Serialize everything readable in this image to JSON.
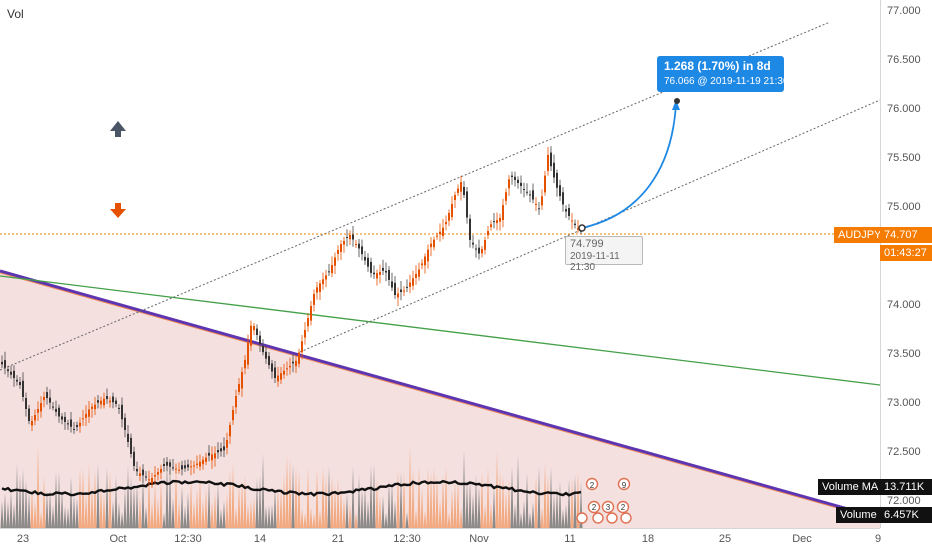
{
  "chart": {
    "volume_label": "Vol",
    "symbol": "AUDJPY",
    "last_price": "74.707",
    "countdown": "01:43:27",
    "volume_ma_label": "Volume MA",
    "volume_ma_value": "13.711K",
    "volume_label_tag": "Volume",
    "volume_value": "6.457K"
  },
  "price_axis": [
    "77.000",
    "76.500",
    "76.000",
    "75.500",
    "75.000",
    "74.000",
    "73.500",
    "73.000",
    "72.500",
    "72.000"
  ],
  "time_axis": [
    "23",
    "Oct",
    "12:30",
    "14",
    "21",
    "12:30",
    "Nov",
    "11",
    "18",
    "25",
    "Dec",
    "9"
  ],
  "projection": {
    "headline": "1.268 (1.70%) in 8d",
    "detail": "76.066 @ 2019-11-19  21:30"
  },
  "anchor_point": {
    "price": "74.799",
    "time": "2019-11-11 21:30"
  },
  "events": [
    "2",
    "9",
    "2",
    "3",
    "2"
  ],
  "colors": {
    "up_candle": "#e65100",
    "down_candle": "#444444",
    "accent_blue": "#1e88e5",
    "price_line": "#f57c00",
    "trend_line": "#5e35b1",
    "support_line": "#43a047",
    "zone_fill": "#f3dada"
  },
  "icons": [
    "arrow-up-icon",
    "arrow-down-icon",
    "earnings-event-icon"
  ]
}
